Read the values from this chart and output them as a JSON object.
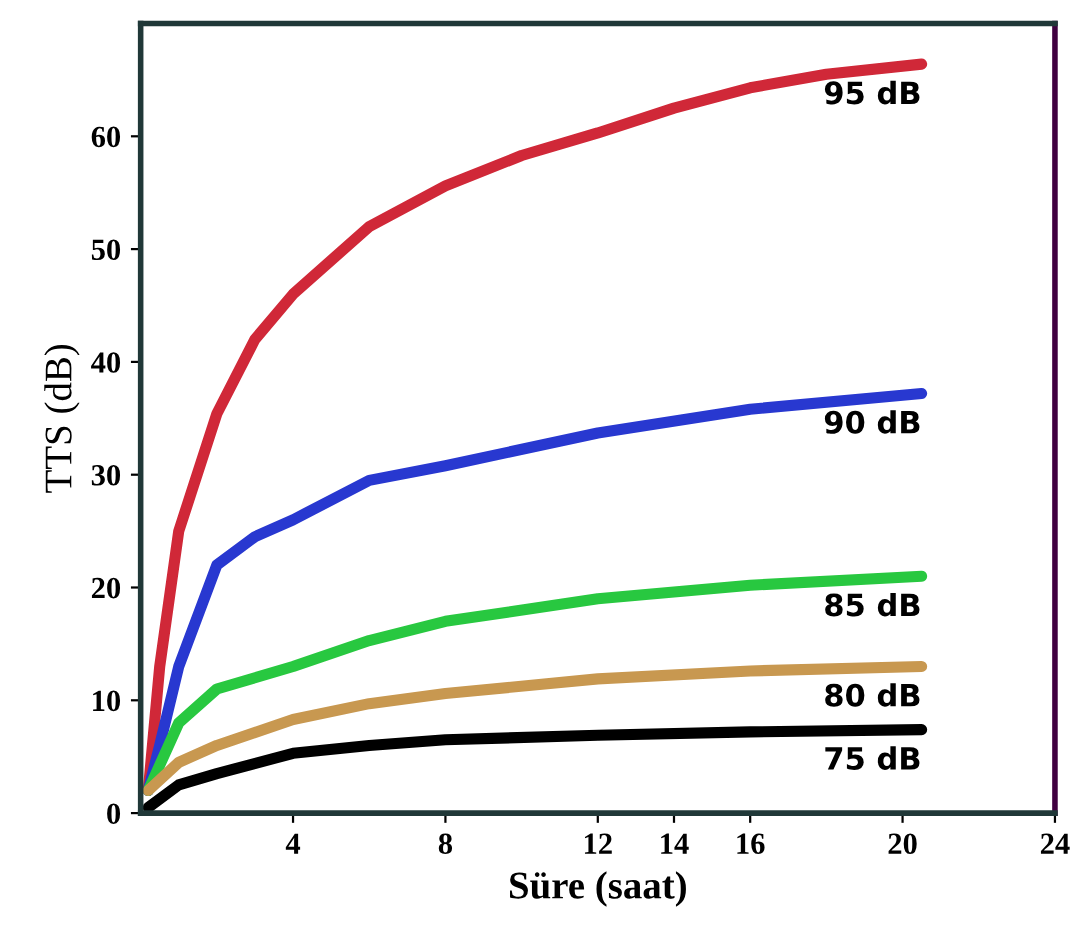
{
  "chart_data": {
    "type": "line",
    "xlabel": "Süre (saat)",
    "ylabel": "TTS (dB)",
    "xlim": [
      0,
      24
    ],
    "ylim": [
      0,
      70
    ],
    "xticks": [
      4,
      8,
      12,
      14,
      16,
      20,
      24
    ],
    "yticks": [
      0,
      10,
      20,
      30,
      40,
      50,
      60
    ],
    "grid": false,
    "legend": false,
    "marker": "none",
    "line_style": "solid",
    "series": [
      {
        "name": "95 dB",
        "color": "#d02838",
        "x": [
          0.2,
          0.5,
          1,
          2,
          3,
          4,
          6,
          8,
          10,
          12,
          14,
          16,
          18,
          20.5
        ],
        "values": [
          2,
          13,
          25,
          35.4,
          42,
          46,
          52,
          55.6,
          58.3,
          60.3,
          62.5,
          64.3,
          65.5,
          66.4
        ]
      },
      {
        "name": "90 dB",
        "color": "#2838d0",
        "x": [
          0.2,
          0.5,
          1,
          2,
          3,
          4,
          6,
          8,
          12,
          16,
          20.5
        ],
        "values": [
          2,
          6,
          13,
          22,
          24.5,
          26,
          29.5,
          30.8,
          33.7,
          35.8,
          37.2
        ]
      },
      {
        "name": "85 dB",
        "color": "#28c840",
        "x": [
          0.2,
          1,
          2,
          4,
          6,
          8,
          12,
          16,
          20.5
        ],
        "values": [
          2,
          8,
          11,
          13,
          15.3,
          17,
          19,
          20.2,
          21
        ]
      },
      {
        "name": "80 dB",
        "color": "#c89850",
        "x": [
          0.2,
          1,
          2,
          4,
          6,
          8,
          12,
          16,
          20.5
        ],
        "values": [
          2,
          4.5,
          6,
          8.3,
          9.7,
          10.6,
          11.9,
          12.6,
          13
        ]
      },
      {
        "name": "75 dB",
        "color": "#000000",
        "x": [
          0.2,
          1,
          2,
          4,
          6,
          8,
          12,
          16,
          20.5
        ],
        "values": [
          0.5,
          2.5,
          3.5,
          5.3,
          6,
          6.5,
          6.9,
          7.2,
          7.4
        ]
      }
    ]
  }
}
